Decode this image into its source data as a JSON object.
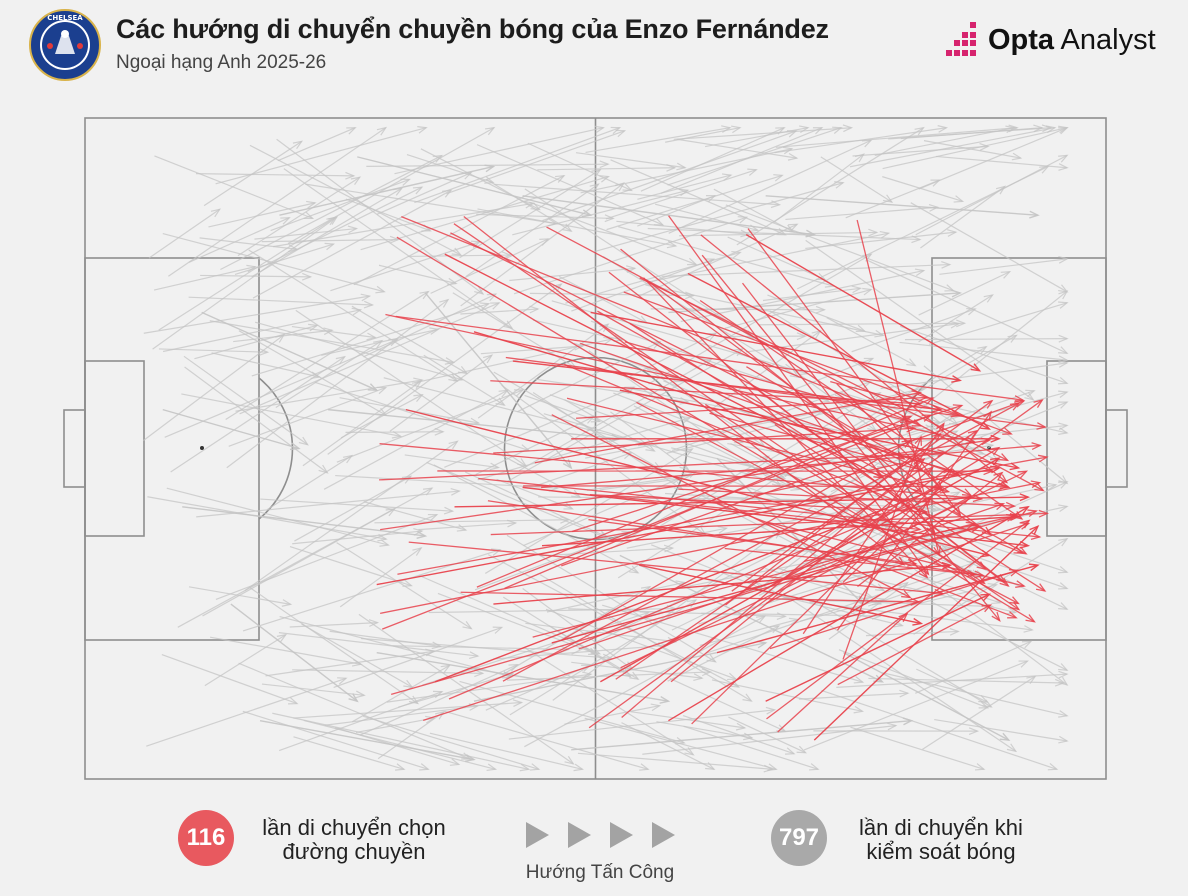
{
  "header": {
    "title": "Các hướng di chuyển chuyền bóng của Enzo Fernández",
    "subtitle": "Ngoại hạng Anh 2025-26",
    "brand_bold": "Opta",
    "brand_light": "Analyst",
    "crest_icon": "chelsea-crest-icon",
    "crest_text": "CHELSEA"
  },
  "colors": {
    "progressive": "#e8424c",
    "carry": "#c4c4c4",
    "pitch_line": "#8e8e8e",
    "badge_red": "#e8595f",
    "badge_grey": "#a9a9a9",
    "brand_pink": "#d6246e"
  },
  "legend": {
    "progressive_count": "116",
    "progressive_label_1": "lần di chuyển chọn",
    "progressive_label_2": "đường chuyền",
    "carry_count": "797",
    "carry_label_1": "lần di chuyển khi",
    "carry_label_2": "kiểm soát bóng",
    "direction_label": "Hướng Tấn Công",
    "direction_icon": "play-arrow-icon"
  },
  "chart_data": {
    "type": "scatter",
    "title": "Các hướng di chuyển chuyền bóng của Enzo Fernández",
    "subtitle": "Ngoại hạng Anh 2025-26",
    "pitch": {
      "length": 105,
      "width": 68,
      "attack_direction": "left-to-right"
    },
    "series": [
      {
        "name": "lần di chuyển chọn đường chuyền",
        "count": 116,
        "color": "#e8424c",
        "paths": [
          {
            "x0": 37,
            "y0": 14,
            "x1": 82,
            "y1": 37
          },
          {
            "x0": 33,
            "y0": 30,
            "x1": 93,
            "y1": 45
          },
          {
            "x0": 30,
            "y0": 48,
            "x1": 94,
            "y1": 36
          },
          {
            "x0": 36,
            "y0": 58,
            "x1": 88,
            "y1": 38
          },
          {
            "x0": 45,
            "y0": 38,
            "x1": 97,
            "y1": 44
          },
          {
            "x0": 52,
            "y0": 20,
            "x1": 90,
            "y1": 27
          },
          {
            "x0": 48,
            "y0": 54,
            "x1": 92,
            "y1": 42
          },
          {
            "x0": 40,
            "y0": 22,
            "x1": 95,
            "y1": 38
          },
          {
            "x0": 42,
            "y0": 50,
            "x1": 89,
            "y1": 46
          },
          {
            "x0": 55,
            "y0": 28,
            "x1": 96,
            "y1": 36
          },
          {
            "x0": 60,
            "y0": 62,
            "x1": 97,
            "y1": 40
          },
          {
            "x0": 50,
            "y0": 33,
            "x1": 94,
            "y1": 33
          },
          {
            "x0": 47,
            "y0": 44,
            "x1": 96,
            "y1": 41
          },
          {
            "x0": 65,
            "y0": 55,
            "x1": 98,
            "y1": 46
          },
          {
            "x0": 62,
            "y0": 16,
            "x1": 93,
            "y1": 32
          },
          {
            "x0": 57,
            "y0": 46,
            "x1": 86,
            "y1": 52
          },
          {
            "x0": 70,
            "y0": 60,
            "x1": 93,
            "y1": 49
          },
          {
            "x0": 38,
            "y0": 40,
            "x1": 97,
            "y1": 39
          },
          {
            "x0": 44,
            "y0": 25,
            "x1": 88,
            "y1": 30
          },
          {
            "x0": 53,
            "y0": 58,
            "x1": 94,
            "y1": 35
          },
          {
            "x0": 68,
            "y0": 12,
            "x1": 92,
            "y1": 26
          },
          {
            "x0": 75,
            "y0": 64,
            "x1": 98,
            "y1": 42
          }
        ]
      },
      {
        "name": "lần di chuyển khi kiểm soát bóng",
        "count": 797,
        "color": "#c4c4c4",
        "paths": [
          {
            "x0": 10,
            "y0": 40,
            "x1": 35,
            "y1": 43
          },
          {
            "x0": 20,
            "y0": 10,
            "x1": 42,
            "y1": 5
          },
          {
            "x0": 18,
            "y0": 62,
            "x1": 40,
            "y1": 66
          },
          {
            "x0": 25,
            "y0": 30,
            "x1": 55,
            "y1": 33
          },
          {
            "x0": 30,
            "y0": 55,
            "x1": 60,
            "y1": 60
          },
          {
            "x0": 45,
            "y0": 8,
            "x1": 75,
            "y1": 12
          },
          {
            "x0": 50,
            "y0": 65,
            "x1": 85,
            "y1": 62
          },
          {
            "x0": 60,
            "y0": 20,
            "x1": 90,
            "y1": 18
          },
          {
            "x0": 12,
            "y0": 20,
            "x1": 30,
            "y1": 28
          },
          {
            "x0": 35,
            "y0": 18,
            "x1": 50,
            "y1": 36
          },
          {
            "x0": 55,
            "y0": 45,
            "x1": 82,
            "y1": 58
          },
          {
            "x0": 70,
            "y0": 8,
            "x1": 98,
            "y1": 10
          },
          {
            "x0": 40,
            "y0": 60,
            "x1": 70,
            "y1": 54
          },
          {
            "x0": 15,
            "y0": 50,
            "x1": 28,
            "y1": 60
          },
          {
            "x0": 65,
            "y0": 35,
            "x1": 80,
            "y1": 50
          },
          {
            "x0": 8,
            "y0": 30,
            "x1": 22,
            "y1": 34
          },
          {
            "x0": 78,
            "y0": 55,
            "x1": 95,
            "y1": 64
          },
          {
            "x0": 28,
            "y0": 4,
            "x1": 52,
            "y1": 10
          }
        ]
      }
    ],
    "legend": [
      "116 lần di chuyển chọn đường chuyền",
      "797 lần di chuyển khi kiểm soát bóng"
    ]
  }
}
